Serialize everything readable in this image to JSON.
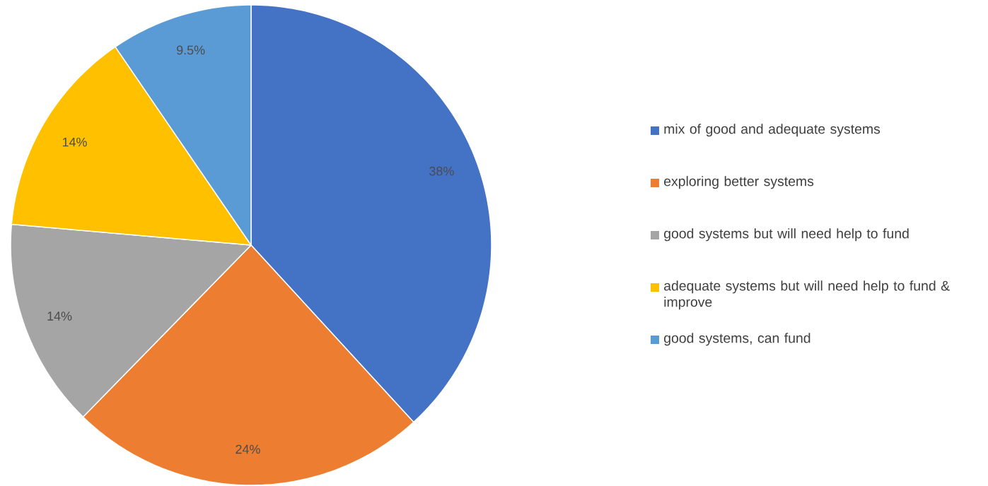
{
  "chart_data": {
    "type": "pie",
    "categories": [
      "mix of good and adequate systems",
      "exploring better systems",
      "good systems but will need help to fund",
      "adequate systems but will need help to fund & improve",
      "good systems, can fund"
    ],
    "values": [
      38,
      24,
      14,
      14,
      9.5
    ],
    "colors": [
      "#4472c4",
      "#ed7d31",
      "#a5a5a5",
      "#ffc000",
      "#5b9bd5"
    ],
    "value_labels": [
      "38%",
      "24%",
      "14%",
      "14%",
      "9.5%"
    ],
    "legend": "right"
  }
}
